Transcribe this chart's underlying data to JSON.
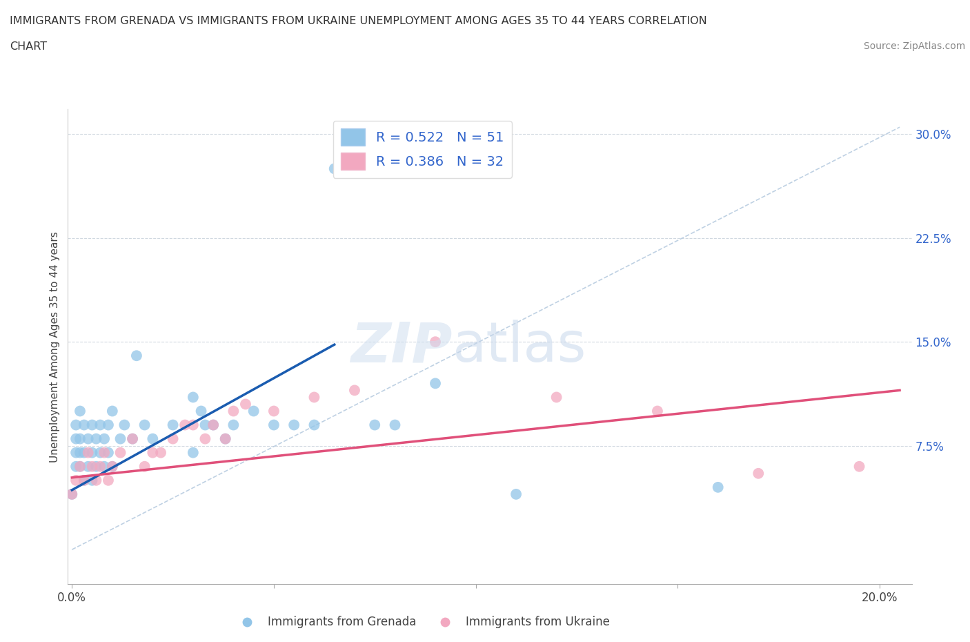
{
  "title_line1": "IMMIGRANTS FROM GRENADA VS IMMIGRANTS FROM UKRAINE UNEMPLOYMENT AMONG AGES 35 TO 44 YEARS CORRELATION",
  "title_line2": "CHART",
  "source": "Source: ZipAtlas.com",
  "ylabel": "Unemployment Among Ages 35 to 44 years",
  "x_tick_positions": [
    0.0,
    0.05,
    0.1,
    0.15,
    0.2
  ],
  "x_tick_labels": [
    "0.0%",
    "",
    "",
    "",
    "20.0%"
  ],
  "y_ticks_right": [
    0.0,
    0.075,
    0.15,
    0.225,
    0.3
  ],
  "y_tick_labels_right": [
    "",
    "7.5%",
    "15.0%",
    "22.5%",
    "30.0%"
  ],
  "xlim": [
    -0.001,
    0.208
  ],
  "ylim": [
    -0.025,
    0.318
  ],
  "grenada_color": "#92c5e8",
  "ukraine_color": "#f2a8c0",
  "grenada_line_color": "#1a5cb0",
  "ukraine_line_color": "#e0507a",
  "diagonal_color": "#b8cce0",
  "background_color": "#ffffff",
  "legend_R1": "R = 0.522",
  "legend_N1": "N = 51",
  "legend_R2": "R = 0.386",
  "legend_N2": "N = 32",
  "grenada_x": [
    0.0,
    0.001,
    0.001,
    0.001,
    0.001,
    0.002,
    0.002,
    0.002,
    0.002,
    0.003,
    0.003,
    0.003,
    0.004,
    0.004,
    0.005,
    0.005,
    0.005,
    0.006,
    0.006,
    0.007,
    0.007,
    0.008,
    0.008,
    0.009,
    0.009,
    0.01,
    0.01,
    0.012,
    0.013,
    0.015,
    0.016,
    0.018,
    0.02,
    0.025,
    0.03,
    0.03,
    0.032,
    0.033,
    0.035,
    0.038,
    0.04,
    0.045,
    0.05,
    0.055,
    0.06,
    0.065,
    0.075,
    0.08,
    0.09,
    0.11,
    0.16
  ],
  "grenada_y": [
    0.04,
    0.06,
    0.07,
    0.08,
    0.09,
    0.06,
    0.07,
    0.08,
    0.1,
    0.05,
    0.07,
    0.09,
    0.06,
    0.08,
    0.05,
    0.07,
    0.09,
    0.06,
    0.08,
    0.07,
    0.09,
    0.06,
    0.08,
    0.07,
    0.09,
    0.06,
    0.1,
    0.08,
    0.09,
    0.08,
    0.14,
    0.09,
    0.08,
    0.09,
    0.07,
    0.11,
    0.1,
    0.09,
    0.09,
    0.08,
    0.09,
    0.1,
    0.09,
    0.09,
    0.09,
    0.275,
    0.09,
    0.09,
    0.12,
    0.04,
    0.045
  ],
  "ukraine_x": [
    0.0,
    0.001,
    0.002,
    0.003,
    0.004,
    0.005,
    0.006,
    0.007,
    0.008,
    0.009,
    0.01,
    0.012,
    0.015,
    0.018,
    0.02,
    0.022,
    0.025,
    0.028,
    0.03,
    0.033,
    0.035,
    0.038,
    0.04,
    0.043,
    0.05,
    0.06,
    0.07,
    0.09,
    0.12,
    0.145,
    0.17,
    0.195
  ],
  "ukraine_y": [
    0.04,
    0.05,
    0.06,
    0.05,
    0.07,
    0.06,
    0.05,
    0.06,
    0.07,
    0.05,
    0.06,
    0.07,
    0.08,
    0.06,
    0.07,
    0.07,
    0.08,
    0.09,
    0.09,
    0.08,
    0.09,
    0.08,
    0.1,
    0.105,
    0.1,
    0.11,
    0.115,
    0.15,
    0.11,
    0.1,
    0.055,
    0.06
  ],
  "grenada_trendline_x": [
    0.0,
    0.065
  ],
  "grenada_trendline_y": [
    0.043,
    0.148
  ],
  "ukraine_trendline_x": [
    0.0,
    0.205
  ],
  "ukraine_trendline_y": [
    0.052,
    0.115
  ]
}
